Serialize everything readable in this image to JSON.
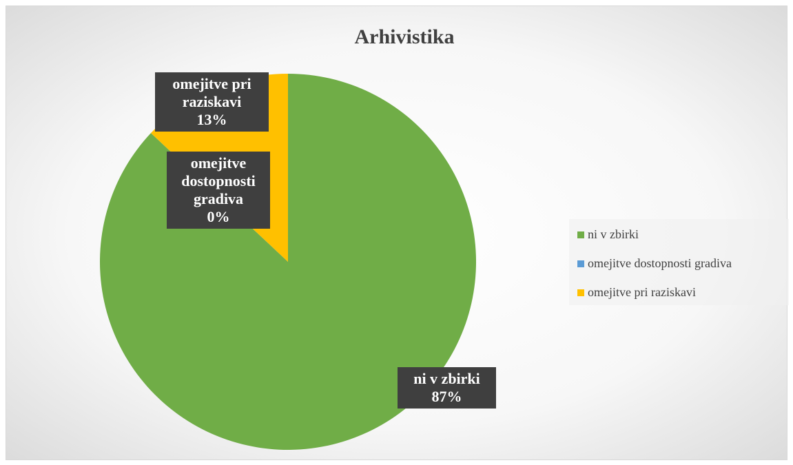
{
  "chart_data": {
    "type": "pie",
    "title": "Arhivistika",
    "categories": [
      "ni v zbirki",
      "omejitve dostopnosti gradiva",
      "omejitve pri raziskavi"
    ],
    "values": [
      87,
      0,
      13
    ],
    "value_labels": [
      "87%",
      "0%",
      "13%"
    ],
    "colors": [
      "#70ad47",
      "#5b9bd5",
      "#ffc000"
    ],
    "legend": "right"
  }
}
